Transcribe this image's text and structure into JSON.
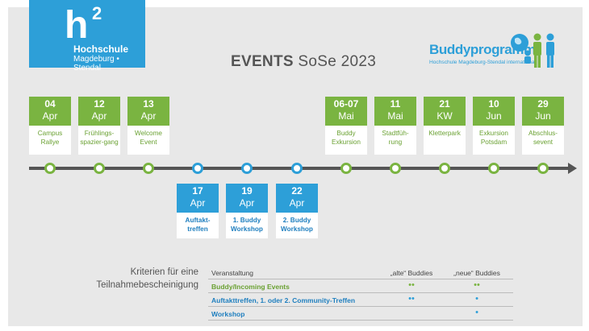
{
  "logo": {
    "letter": "h",
    "sup": "2",
    "line1": "Hochschule",
    "line2": "Magdeburg • Stendal"
  },
  "title": {
    "bold": "EVENTS",
    "rest": "SoSe 2023"
  },
  "buddy": {
    "name": "Buddyprogramm",
    "sub": "Hochschule Magdeburg-Stendal international"
  },
  "colors": {
    "green": "#7ab441",
    "blue": "#2d9fd8",
    "axis": "#555555",
    "background": "#e8e8e8"
  },
  "events_top": [
    {
      "d1": "04",
      "d2": "Apr",
      "text": "Campus Rallye"
    },
    {
      "d1": "12",
      "d2": "Apr",
      "text": "Frühlings-spazier-gang"
    },
    {
      "d1": "13",
      "d2": "Apr",
      "text": "Welcome Event"
    },
    {
      "d1": "06-07",
      "d2": "Mai",
      "text": "Buddy Exkursion"
    },
    {
      "d1": "11",
      "d2": "Mai",
      "text": "Stadtfüh-rung"
    },
    {
      "d1": "21",
      "d2": "KW",
      "text": "Kletterpark"
    },
    {
      "d1": "10",
      "d2": "Jun",
      "text": "Exkursion Potsdam"
    },
    {
      "d1": "29",
      "d2": "Jun",
      "text": "Abschlus-sevent"
    }
  ],
  "events_bottom": [
    {
      "d1": "17",
      "d2": "Apr",
      "text": "Auftakt-treffen"
    },
    {
      "d1": "19",
      "d2": "Apr",
      "text": "1. Buddy Workshop"
    },
    {
      "d1": "22",
      "d2": "Apr",
      "text": "2. Buddy Workshop"
    }
  ],
  "criteria": {
    "line1": "Kriterien für eine",
    "line2": "Teilnahmebescheinigung"
  },
  "table": {
    "headers": [
      "Veranstaltung",
      "„alte“ Buddies",
      "„neue“ Buddies"
    ],
    "rows": [
      [
        "Buddy/Incoming Events",
        "••",
        "••"
      ],
      [
        "Auftakttreffen, 1. oder 2. Community-Treffen",
        "••",
        "•"
      ],
      [
        "Workshop",
        "",
        "•"
      ]
    ]
  }
}
